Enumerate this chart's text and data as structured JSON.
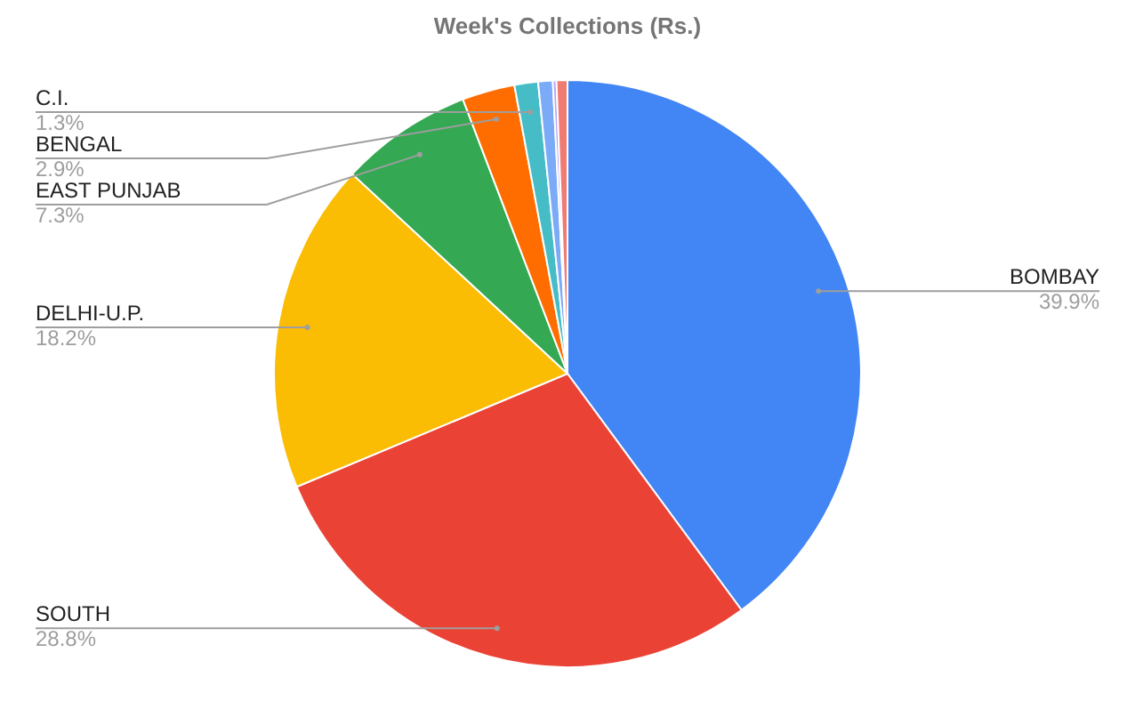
{
  "chart_data": {
    "type": "pie",
    "title": "Week's Collections (Rs.)",
    "categories": [
      "BOMBAY",
      "SOUTH",
      "DELHI-U.P.",
      "EAST PUNJAB",
      "BENGAL",
      "C.I.",
      null,
      null,
      null
    ],
    "values": [
      39.9,
      28.8,
      18.2,
      7.3,
      2.9,
      1.3,
      0.8,
      0.2,
      0.6
    ],
    "value_labels": [
      "39.9%",
      "28.8%",
      "18.2%",
      "7.3%",
      "2.9%",
      "1.3%",
      null,
      null,
      null
    ],
    "colors": [
      "#4285f4",
      "#ea4335",
      "#fbbc04",
      "#34a853",
      "#ff6d01",
      "#46bdc6",
      "#7baaf7",
      "#b4a7f5",
      "#f07b72"
    ]
  }
}
